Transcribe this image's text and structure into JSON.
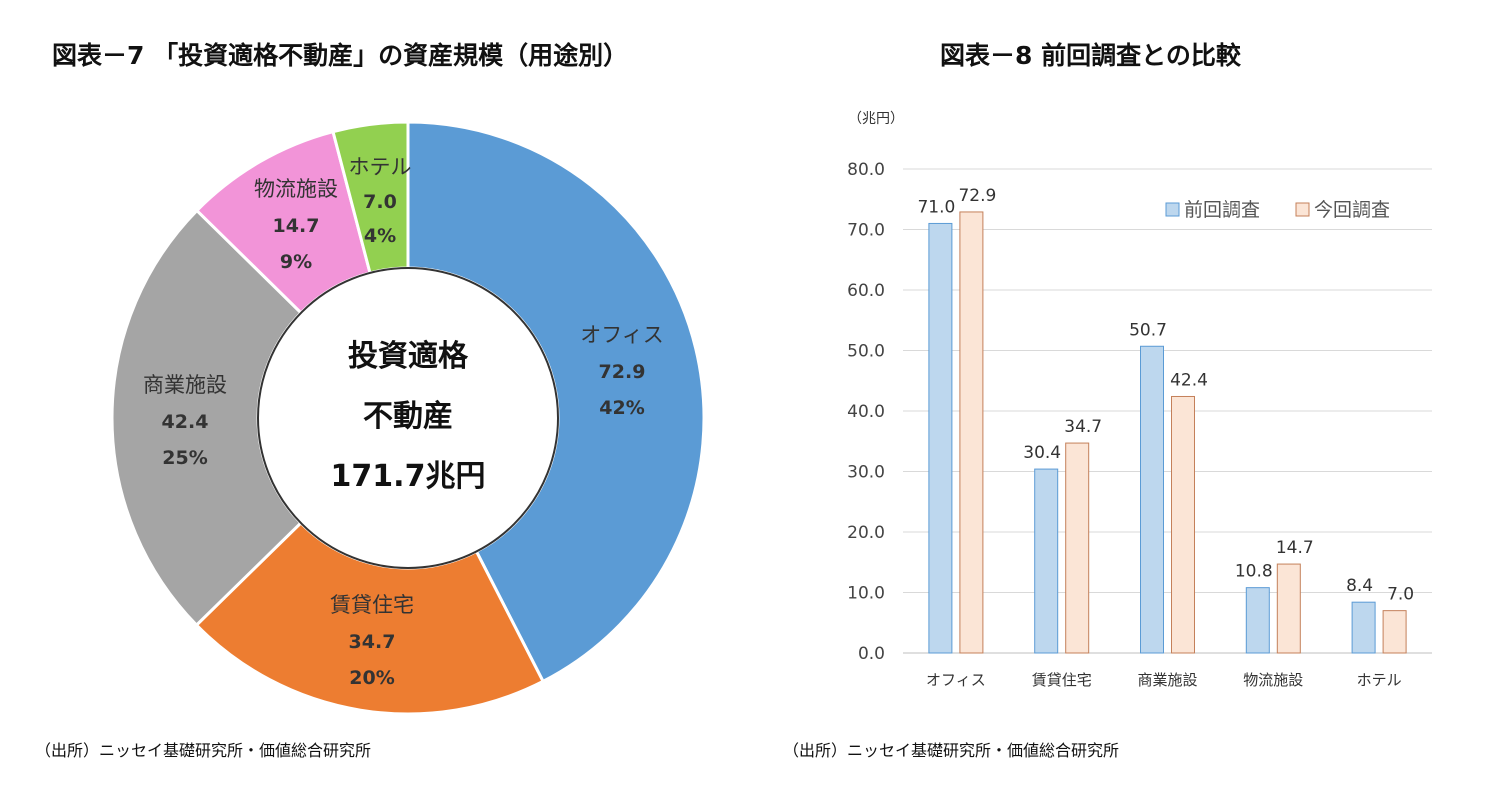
{
  "titles": {
    "left": "図表－7 「投資適格不動産」の資産規模（用途別）",
    "right": "図表－8  前回調査との比較"
  },
  "sources": {
    "left": "（出所）ニッセイ基礎研究所・価値総合研究所",
    "right": "（出所）ニッセイ基礎研究所・価値総合研究所"
  },
  "chart_data": [
    {
      "type": "pie",
      "variant": "donut",
      "center_text": [
        "投資適格",
        "不動産",
        "171.7兆円"
      ],
      "slices": [
        {
          "label": "オフィス",
          "value": 72.9,
          "value_label": "72.9",
          "percent_label": "42%",
          "color": "#5b9bd5"
        },
        {
          "label": "賃貸住宅",
          "value": 34.7,
          "value_label": "34.7",
          "percent_label": "20%",
          "color": "#ed7d31"
        },
        {
          "label": "商業施設",
          "value": 42.4,
          "value_label": "42.4",
          "percent_label": "25%",
          "color": "#a5a5a5"
        },
        {
          "label": "物流施設",
          "value": 14.7,
          "value_label": "14.7",
          "percent_label": "9%",
          "color": "#f294d8"
        },
        {
          "label": "ホテル",
          "value": 7.0,
          "value_label": "7.0",
          "percent_label": "4%",
          "color": "#92d050"
        }
      ]
    },
    {
      "type": "bar",
      "unit_label": "（兆円）",
      "categories": [
        "オフィス",
        "賃貸住宅",
        "商業施設",
        "物流施設",
        "ホテル"
      ],
      "series": [
        {
          "name": "前回調査",
          "values": [
            71.0,
            30.4,
            50.7,
            10.8,
            8.4
          ],
          "labels": [
            "71.0",
            "30.4",
            "50.7",
            "10.8",
            "8.4"
          ],
          "fill": "#bdd7ee",
          "stroke": "#5b9bd5"
        },
        {
          "name": "今回調査",
          "values": [
            72.9,
            34.7,
            42.4,
            14.7,
            7.0
          ],
          "labels": [
            "72.9",
            "34.7",
            "42.4",
            "14.7",
            "7.0"
          ],
          "fill": "#fbe5d6",
          "stroke": "#c4805a"
        }
      ],
      "ylim": [
        0,
        80
      ],
      "yticks": [
        "0.0",
        "10.0",
        "20.0",
        "30.0",
        "40.0",
        "50.0",
        "60.0",
        "70.0",
        "80.0"
      ],
      "grid": true,
      "legend_position": "top-right"
    }
  ]
}
